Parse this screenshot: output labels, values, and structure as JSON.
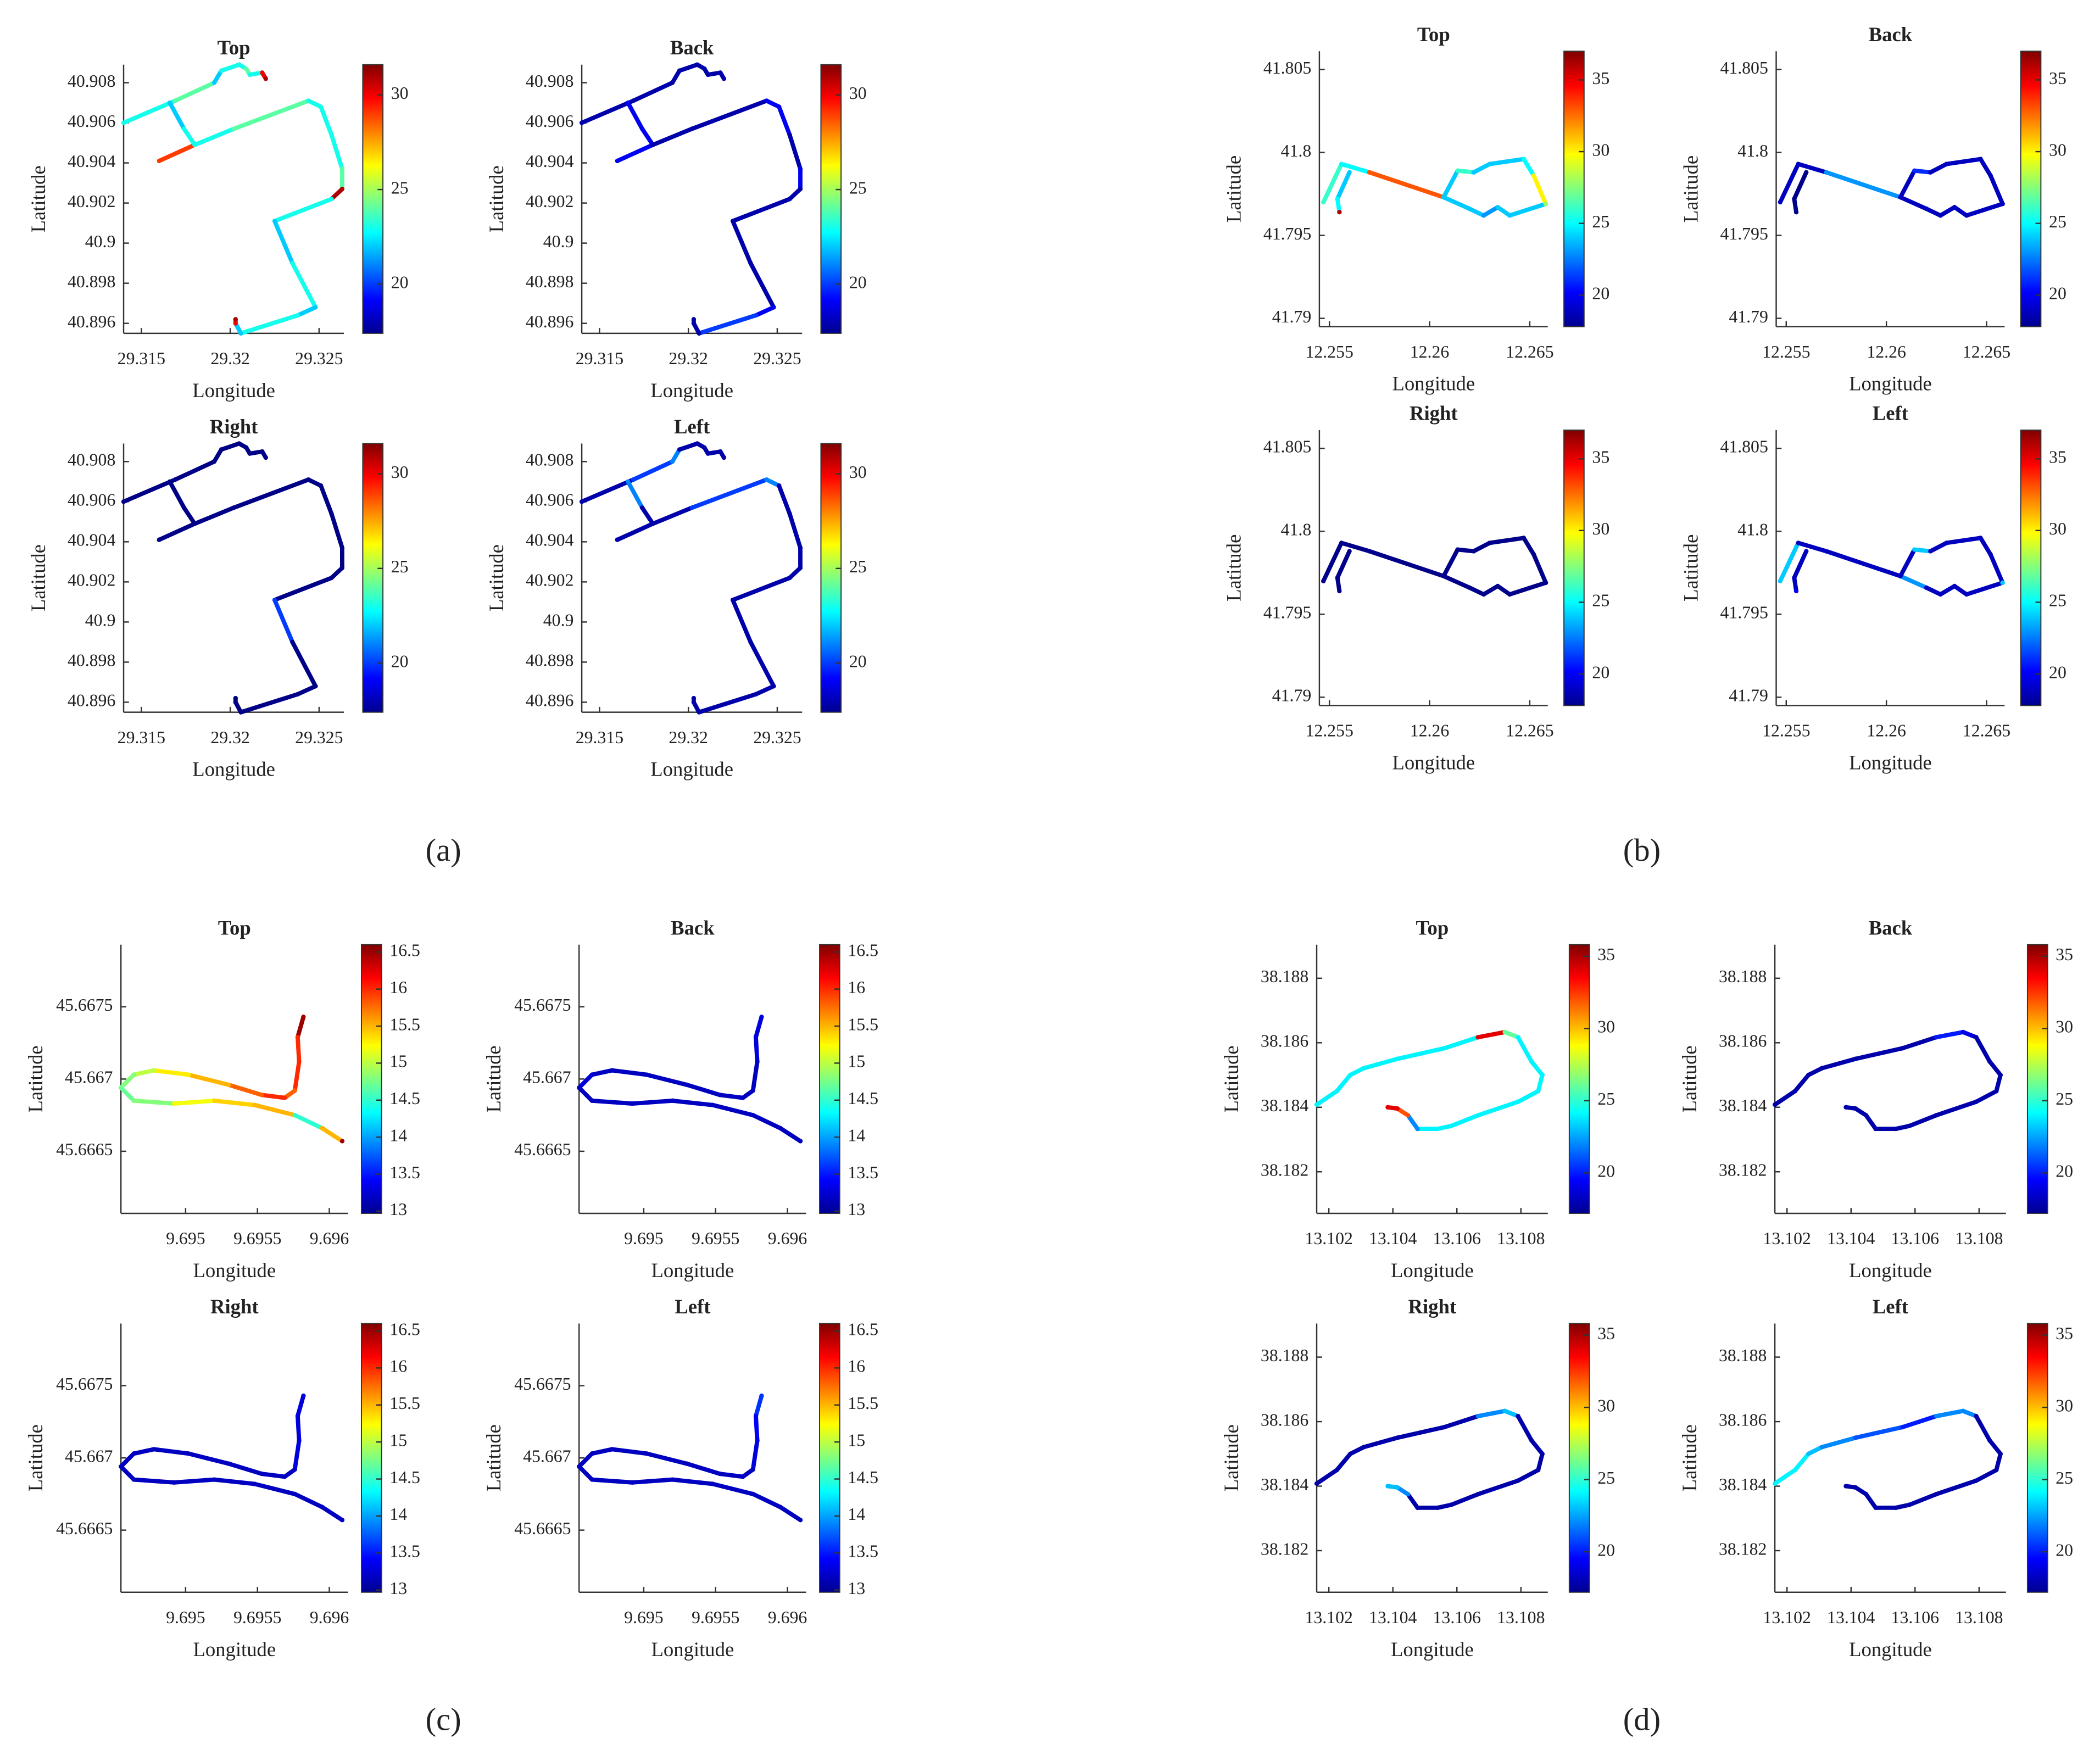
{
  "chart_data": [
    {
      "type": "line",
      "label": "(a)",
      "xlabel": "Longitude",
      "ylabel": "Latitude",
      "colormap": "jet",
      "xlim": [
        29.314,
        29.3264
      ],
      "ylim": [
        40.8955,
        40.9089
      ],
      "xticks": [
        29.315,
        29.32,
        29.325
      ],
      "yticks": [
        40.896,
        40.898,
        40.9,
        40.902,
        40.904,
        40.906,
        40.908
      ],
      "clim": [
        17.4,
        31.6
      ],
      "cticks": [
        20,
        25,
        30
      ],
      "x": [
        29.314,
        29.3169,
        29.3191,
        29.3195,
        29.3205,
        29.3209,
        29.3211,
        29.3218,
        29.322,
        null,
        29.316,
        29.318,
        29.3202,
        29.3244,
        29.3251,
        29.3257,
        29.3263,
        29.3263,
        29.3257,
        29.3225,
        29.3235,
        29.3248,
        29.3238,
        29.3206,
        29.3203,
        29.3203,
        null,
        29.3166,
        29.3174,
        29.318
      ],
      "y": [
        40.906,
        40.9071,
        40.908,
        40.9086,
        40.9089,
        40.9087,
        40.9084,
        40.9085,
        40.9082,
        null,
        40.9041,
        40.9049,
        40.9057,
        40.9071,
        40.9068,
        40.9054,
        40.9037,
        40.9027,
        40.9022,
        40.9011,
        40.899,
        40.8968,
        40.8964,
        40.8955,
        40.896,
        40.8962,
        null,
        40.907,
        40.9057,
        40.9049
      ],
      "views": [
        {
          "title": "Top",
          "values": [
            23,
            24,
            22,
            23,
            23,
            24,
            23,
            30,
            31,
            null,
            29,
            23,
            24,
            23,
            23,
            23,
            24,
            31,
            23,
            22,
            23,
            22,
            23,
            22,
            30,
            31,
            null,
            22,
            23,
            23
          ]
        },
        {
          "title": "Back",
          "values": [
            18,
            18,
            18,
            18,
            18,
            18,
            18,
            18,
            18,
            null,
            19,
            18,
            18,
            19,
            19,
            18,
            19,
            18,
            18,
            18,
            18,
            19,
            20,
            18,
            18,
            18,
            null,
            19,
            19,
            18
          ]
        },
        {
          "title": "Right",
          "values": [
            17.5,
            17.5,
            17.5,
            17.5,
            17.5,
            17.5,
            17.5,
            17.5,
            17.5,
            null,
            17.5,
            17.5,
            17.5,
            17.5,
            17.5,
            17.5,
            17.5,
            17.5,
            17.5,
            20,
            17.5,
            17.5,
            17.5,
            17.5,
            17.5,
            17.5,
            null,
            17.5,
            17.5,
            17.5
          ]
        },
        {
          "title": "Left",
          "values": [
            18,
            20,
            21,
            18,
            18,
            18,
            18,
            18,
            18,
            null,
            18,
            18,
            20,
            21,
            18,
            18,
            18,
            18,
            18,
            18,
            18,
            18,
            18,
            18,
            18,
            18,
            null,
            21,
            18,
            18
          ]
        }
      ]
    },
    {
      "type": "line",
      "label": "(b)",
      "xlabel": "Longitude",
      "ylabel": "Latitude",
      "colormap": "jet",
      "xlim": [
        12.2545,
        12.2659
      ],
      "ylim": [
        41.7895,
        41.8061
      ],
      "xticks": [
        12.255,
        12.26,
        12.265
      ],
      "yticks": [
        41.79,
        41.795,
        41.8,
        41.805
      ],
      "clim": [
        17.8,
        37
      ],
      "cticks": [
        20,
        25,
        30,
        35
      ],
      "x": [
        12.2547,
        12.2556,
        12.257,
        12.2607,
        12.262,
        12.2627,
        12.2634,
        12.264,
        12.2658,
        null,
        12.2607,
        12.2614,
        12.2622,
        12.263,
        12.2647,
        12.2652,
        12.2658,
        null,
        12.256,
        12.2554,
        12.2555
      ],
      "y": [
        41.797,
        41.7993,
        41.7988,
        41.7973,
        41.7966,
        41.7962,
        41.7967,
        41.7962,
        41.7969,
        null,
        41.7973,
        41.7989,
        41.7988,
        41.7993,
        41.7996,
        41.7986,
        41.7969,
        null,
        41.7988,
        41.7972,
        41.7964
      ],
      "views": [
        {
          "title": "Top",
          "values": [
            26,
            25,
            33,
            24,
            24,
            23,
            24,
            24,
            28,
            null,
            24,
            26,
            24,
            24,
            25,
            30,
            28,
            null,
            24,
            25,
            36
          ]
        },
        {
          "title": "Back",
          "values": [
            19,
            19,
            23,
            19,
            19,
            19,
            19,
            19,
            19,
            null,
            19,
            21,
            19,
            19,
            19,
            19,
            19,
            null,
            18,
            18,
            18
          ]
        },
        {
          "title": "Right",
          "values": [
            18,
            18,
            18,
            18,
            18,
            18,
            18,
            18,
            18,
            null,
            18,
            18,
            18,
            18,
            18,
            18,
            18,
            null,
            18,
            18,
            18
          ]
        },
        {
          "title": "Left",
          "values": [
            24,
            19,
            19,
            23,
            19,
            19,
            19,
            19,
            24,
            null,
            19,
            24,
            19,
            19,
            19,
            19,
            24,
            null,
            19,
            19,
            20
          ]
        }
      ]
    },
    {
      "type": "line",
      "label": "(c)",
      "xlabel": "Longitude",
      "ylabel": "Latitude",
      "colormap": "jet",
      "xlim": [
        9.69455,
        9.69613
      ],
      "ylim": [
        45.66607,
        45.66793
      ],
      "xticks": [
        9.695,
        9.6955,
        9.696
      ],
      "yticks": [
        45.6665,
        45.667,
        45.6675
      ],
      "clim": [
        12.97,
        16.6
      ],
      "cticks": [
        13,
        13.5,
        14,
        14.5,
        15,
        15.5,
        16,
        16.5
      ],
      "x": [
        9.69582,
        9.69578,
        9.69579,
        9.69576,
        9.69569,
        9.69553,
        9.6953,
        9.69502,
        9.69478,
        9.69464,
        9.69455,
        9.69464,
        9.69492,
        9.6952,
        9.69548,
        9.69576,
        9.69595,
        9.69609
      ],
      "y": [
        45.66743,
        45.66729,
        45.66712,
        45.66692,
        45.66687,
        45.66689,
        45.66696,
        45.66703,
        45.66706,
        45.66703,
        45.66694,
        45.66685,
        45.66683,
        45.66685,
        45.66682,
        45.66675,
        45.66666,
        45.66657
      ],
      "views": [
        {
          "title": "Top",
          "values": [
            16.5,
            16,
            16,
            15.8,
            16,
            15.8,
            15.5,
            15.3,
            15,
            14.8,
            14.7,
            14.8,
            15.2,
            15.4,
            15.5,
            14.5,
            15.5,
            16.5
          ]
        },
        {
          "title": "Back",
          "values": [
            13.3,
            13.3,
            13.2,
            13.2,
            13.2,
            13.2,
            13.2,
            13.2,
            13.2,
            13.3,
            13.2,
            13.2,
            13.2,
            13.2,
            13.2,
            13.2,
            13.2,
            13.2
          ]
        },
        {
          "title": "Right",
          "values": [
            13.3,
            13.3,
            13.3,
            13.2,
            13.2,
            13.2,
            13.2,
            13.2,
            13.2,
            13.2,
            13.2,
            13.2,
            13.2,
            13.2,
            13.2,
            13.2,
            13.2,
            13.2
          ]
        },
        {
          "title": "Left",
          "values": [
            13.6,
            13.4,
            13.3,
            13.2,
            13.2,
            13.2,
            13.2,
            13.2,
            13.2,
            13.2,
            13.2,
            13.2,
            13.2,
            13.2,
            13.2,
            13.2,
            13.2,
            13.2
          ]
        }
      ]
    },
    {
      "type": "line",
      "label": "(d)",
      "xlabel": "Longitude",
      "ylabel": "Latitude",
      "colormap": "jet",
      "xlim": [
        13.10162,
        13.10884
      ],
      "ylim": [
        38.18071,
        38.18904
      ],
      "xticks": [
        13.102,
        13.104,
        13.106,
        13.108
      ],
      "yticks": [
        38.182,
        38.184,
        38.186,
        38.188
      ],
      "clim": [
        17.2,
        35.8
      ],
      "cticks": [
        20,
        25,
        30,
        35
      ],
      "x": [
        13.10162,
        13.10225,
        13.10267,
        13.10309,
        13.10414,
        13.10561,
        13.10666,
        13.1075,
        13.10791,
        13.10833,
        13.10867,
        13.10854,
        13.10791,
        13.10666,
        13.10582,
        13.1054,
        13.10477,
        13.10447,
        13.10414,
        13.10384
      ],
      "y": [
        38.18408,
        38.1845,
        38.185,
        38.18521,
        38.1855,
        38.18583,
        38.18617,
        38.18633,
        38.18617,
        38.18542,
        38.185,
        38.1845,
        38.18417,
        38.18375,
        38.18342,
        38.18333,
        38.18333,
        38.18375,
        38.18396,
        38.184
      ],
      "views": [
        {
          "title": "Top",
          "values": [
            24,
            24,
            24,
            24,
            24,
            24,
            34,
            26,
            24,
            24,
            24,
            24,
            24,
            24,
            24,
            24,
            22,
            32,
            34,
            34
          ]
        },
        {
          "title": "Back",
          "values": [
            18,
            18,
            18,
            18,
            18,
            18,
            20,
            19,
            18,
            18,
            18,
            18,
            18,
            18,
            18,
            18,
            18,
            18,
            18,
            18
          ]
        },
        {
          "title": "Right",
          "values": [
            18,
            18,
            18,
            18,
            18,
            18,
            22,
            23,
            18,
            18,
            18,
            18,
            18,
            18,
            18,
            18,
            18,
            22,
            23,
            23
          ]
        },
        {
          "title": "Left",
          "values": [
            24,
            24,
            23,
            22,
            21,
            20,
            22,
            22,
            18,
            18,
            18,
            18,
            18,
            18,
            18,
            18,
            18,
            18,
            18,
            18
          ]
        }
      ]
    }
  ]
}
